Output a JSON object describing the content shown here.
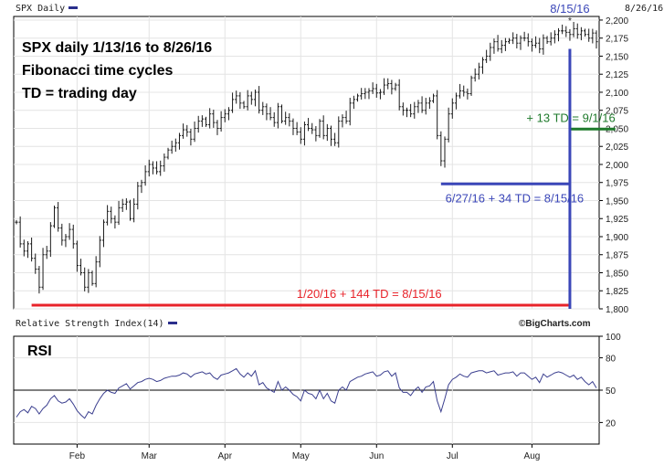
{
  "header": {
    "symbol_label": "SPX Daily",
    "date_label": "8/26/16",
    "rsi_label": "Relative Strength Index(14)",
    "brand": "©BigCharts.com"
  },
  "chart_data": [
    {
      "type": "line",
      "title_lines": [
        "SPX daily 1/13/16 to 8/26/16",
        "Fibonacci time cycles",
        "TD = trading day"
      ],
      "x_ticks": [
        "Feb",
        "Mar",
        "Apr",
        "May",
        "Jun",
        "Jul",
        "Aug"
      ],
      "x_tick_days": [
        16,
        35,
        55,
        75,
        95,
        115,
        136
      ],
      "y_ticks": [
        1800,
        1825,
        1850,
        1875,
        1900,
        1925,
        1950,
        1975,
        2000,
        2025,
        2050,
        2075,
        2100,
        2125,
        2150,
        2175,
        2200
      ],
      "y_tick_labels": [
        "1,800",
        "1,825",
        "1,850",
        "1,875",
        "1,900",
        "1,925",
        "1,950",
        "1,975",
        "2,000",
        "2,025",
        "2,050",
        "2,075",
        "2,100",
        "2,125",
        "2,150",
        "2,175",
        "2,200"
      ],
      "ylim": [
        1800,
        2205
      ],
      "series": [
        {
          "values": [
            1920,
            1890,
            1880,
            1890,
            1870,
            1855,
            1830,
            1875,
            1880,
            1915,
            1940,
            1912,
            1895,
            1900,
            1910,
            1890,
            1860,
            1850,
            1830,
            1850,
            1835,
            1865,
            1895,
            1920,
            1935,
            1925,
            1920,
            1940,
            1945,
            1948,
            1925,
            1945,
            1970,
            1975,
            1990,
            2000,
            1995,
            1990,
            1998,
            2010,
            2020,
            2025,
            2030,
            2040,
            2048,
            2045,
            2035,
            2050,
            2060,
            2063,
            2055,
            2070,
            2058,
            2050,
            2065,
            2070,
            2075,
            2090,
            2095,
            2085,
            2080,
            2095,
            2090,
            2100,
            2075,
            2080,
            2070,
            2065,
            2058,
            2080,
            2060,
            2065,
            2060,
            2050,
            2045,
            2035,
            2055,
            2050,
            2048,
            2040,
            2060,
            2040,
            2050,
            2035,
            2030,
            2060,
            2065,
            2060,
            2085,
            2090,
            2095,
            2098,
            2100,
            2102,
            2105,
            2099,
            2100,
            2110,
            2112,
            2105,
            2110,
            2080,
            2075,
            2075,
            2070,
            2080,
            2085,
            2075,
            2085,
            2088,
            2095,
            2040,
            2005,
            2035,
            2070,
            2085,
            2095,
            2102,
            2100,
            2098,
            2120,
            2125,
            2135,
            2145,
            2150,
            2162,
            2170,
            2160,
            2165,
            2170,
            2172,
            2175,
            2168,
            2175,
            2175,
            2170,
            2165,
            2168,
            2160,
            2175,
            2170,
            2175,
            2180,
            2185,
            2185,
            2183,
            2180,
            2188,
            2180,
            2185,
            2180,
            2175,
            2182,
            2170
          ],
          "ohlc_spread": 10
        }
      ],
      "annotations": [
        {
          "label": "8/15/16",
          "color": "#3a46b8",
          "day": 146,
          "value": 2195,
          "kind": "top-label"
        },
        {
          "label": "1/20/16 + 144 TD = 8/15/16",
          "color": "#e8232a",
          "from_day": 4,
          "to_day": 146,
          "value": 1805,
          "kind": "hline"
        },
        {
          "label": "6/27/16 + 34 TD = 8/15/16",
          "color": "#3a46b8",
          "from_day": 112,
          "to_day": 146,
          "value": 1973,
          "kind": "hline"
        },
        {
          "label": "+ 13 TD = 9/1/16",
          "color": "#1f7a2c",
          "from_day": 146,
          "to_day": 158,
          "value": 2049,
          "kind": "hline"
        },
        {
          "day": 146,
          "from_value": 1800,
          "to_value": 2160,
          "color": "#3a46b8",
          "kind": "vline"
        }
      ],
      "star_marker": "*"
    },
    {
      "type": "line",
      "title": "RSI",
      "y_ticks": [
        20,
        50,
        80,
        100
      ],
      "y_tick_labels": [
        "20",
        "50",
        "80",
        "100"
      ],
      "ylim": [
        0,
        100
      ],
      "reference_line": 50,
      "series": [
        {
          "values": [
            25,
            30,
            32,
            29,
            35,
            33,
            28,
            33,
            36,
            42,
            45,
            40,
            38,
            39,
            42,
            37,
            31,
            27,
            24,
            30,
            28,
            36,
            42,
            47,
            50,
            48,
            47,
            52,
            54,
            56,
            51,
            54,
            57,
            58,
            60,
            61,
            60,
            58,
            59,
            61,
            62,
            63,
            63,
            64,
            66,
            65,
            62,
            65,
            66,
            67,
            65,
            66,
            62,
            60,
            64,
            65,
            66,
            68,
            70,
            65,
            62,
            66,
            63,
            68,
            55,
            57,
            52,
            50,
            48,
            58,
            50,
            53,
            50,
            46,
            44,
            40,
            50,
            47,
            46,
            42,
            50,
            42,
            47,
            40,
            38,
            50,
            53,
            50,
            58,
            60,
            62,
            63,
            65,
            66,
            67,
            63,
            64,
            67,
            68,
            63,
            66,
            52,
            48,
            48,
            45,
            50,
            53,
            48,
            53,
            54,
            58,
            40,
            30,
            42,
            55,
            60,
            62,
            65,
            63,
            62,
            66,
            67,
            68,
            68,
            66,
            67,
            68,
            64,
            65,
            66,
            66,
            67,
            63,
            66,
            66,
            63,
            60,
            62,
            57,
            65,
            62,
            64,
            66,
            67,
            66,
            64,
            62,
            64,
            60,
            62,
            58,
            55,
            58,
            52
          ]
        }
      ]
    }
  ]
}
